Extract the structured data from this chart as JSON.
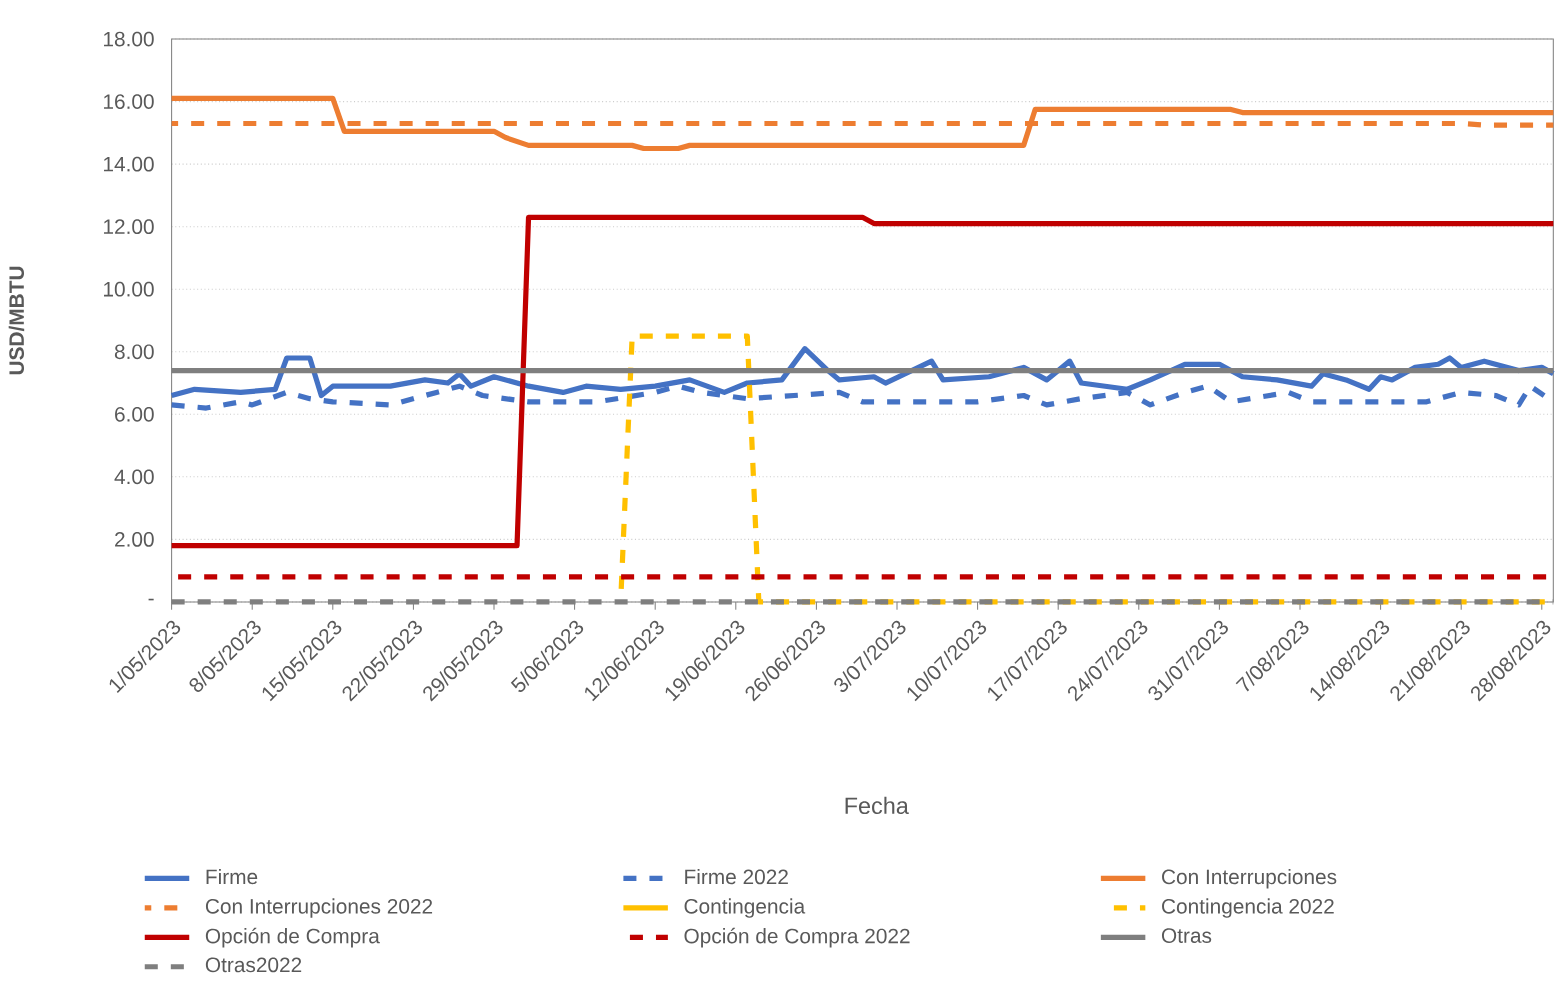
{
  "chart_data": {
    "type": "line",
    "xlabel": "Fecha",
    "ylabel": "USD/MBTU",
    "xlim": [
      "2023-05-01",
      "2023-08-29"
    ],
    "xticks": [
      {
        "value": "2023-05-01",
        "label": "1/05/2023"
      },
      {
        "value": "2023-05-08",
        "label": "8/05/2023"
      },
      {
        "value": "2023-05-15",
        "label": "15/05/2023"
      },
      {
        "value": "2023-05-22",
        "label": "22/05/2023"
      },
      {
        "value": "2023-05-29",
        "label": "29/05/2023"
      },
      {
        "value": "2023-06-05",
        "label": "5/06/2023"
      },
      {
        "value": "2023-06-12",
        "label": "12/06/2023"
      },
      {
        "value": "2023-06-19",
        "label": "19/06/2023"
      },
      {
        "value": "2023-06-26",
        "label": "26/06/2023"
      },
      {
        "value": "2023-07-03",
        "label": "3/07/2023"
      },
      {
        "value": "2023-07-10",
        "label": "10/07/2023"
      },
      {
        "value": "2023-07-17",
        "label": "17/07/2023"
      },
      {
        "value": "2023-07-24",
        "label": "24/07/2023"
      },
      {
        "value": "2023-07-31",
        "label": "31/07/2023"
      },
      {
        "value": "2023-08-07",
        "label": "7/08/2023"
      },
      {
        "value": "2023-08-14",
        "label": "14/08/2023"
      },
      {
        "value": "2023-08-21",
        "label": "21/08/2023"
      },
      {
        "value": "2023-08-28",
        "label": "28/08/2023"
      }
    ],
    "ylim": [
      0,
      18
    ],
    "yticks": [
      {
        "value": 0,
        "label": "-"
      },
      {
        "value": 2,
        "label": "2.00"
      },
      {
        "value": 4,
        "label": "4.00"
      },
      {
        "value": 6,
        "label": "6.00"
      },
      {
        "value": 8,
        "label": "8.00"
      },
      {
        "value": 10,
        "label": "10.00"
      },
      {
        "value": 12,
        "label": "12.00"
      },
      {
        "value": 14,
        "label": "14.00"
      },
      {
        "value": 16,
        "label": "16.00"
      },
      {
        "value": 18,
        "label": "18.00"
      }
    ],
    "grid": "y",
    "legend": "bottom",
    "marker": "none",
    "series": [
      {
        "name": "Firme",
        "color": "#4472c4",
        "line_style": "solid",
        "x": [
          "2023-05-01",
          "2023-05-03",
          "2023-05-07",
          "2023-05-10",
          "2023-05-11",
          "2023-05-13",
          "2023-05-14",
          "2023-05-15",
          "2023-05-20",
          "2023-05-23",
          "2023-05-25",
          "2023-05-26",
          "2023-05-27",
          "2023-05-29",
          "2023-06-01",
          "2023-06-04",
          "2023-06-06",
          "2023-06-09",
          "2023-06-12",
          "2023-06-15",
          "2023-06-18",
          "2023-06-20",
          "2023-06-23",
          "2023-06-25",
          "2023-06-27",
          "2023-06-28",
          "2023-07-01",
          "2023-07-02",
          "2023-07-06",
          "2023-07-07",
          "2023-07-11",
          "2023-07-14",
          "2023-07-16",
          "2023-07-18",
          "2023-07-19",
          "2023-07-23",
          "2023-07-25",
          "2023-07-28",
          "2023-07-31",
          "2023-08-02",
          "2023-08-05",
          "2023-08-08",
          "2023-08-09",
          "2023-08-11",
          "2023-08-13",
          "2023-08-14",
          "2023-08-15",
          "2023-08-17",
          "2023-08-19",
          "2023-08-20",
          "2023-08-21",
          "2023-08-23",
          "2023-08-26",
          "2023-08-28",
          "2023-08-29"
        ],
        "values": [
          6.6,
          6.8,
          6.7,
          6.8,
          7.8,
          7.8,
          6.6,
          6.9,
          6.9,
          7.1,
          7.0,
          7.3,
          6.9,
          7.2,
          6.9,
          6.7,
          6.9,
          6.8,
          6.9,
          7.1,
          6.7,
          7.0,
          7.1,
          8.1,
          7.4,
          7.1,
          7.2,
          7.0,
          7.7,
          7.1,
          7.2,
          7.5,
          7.1,
          7.7,
          7.0,
          6.8,
          7.1,
          7.6,
          7.6,
          7.2,
          7.1,
          6.9,
          7.3,
          7.1,
          6.8,
          7.2,
          7.1,
          7.5,
          7.6,
          7.8,
          7.5,
          7.7,
          7.4,
          7.5,
          7.3
        ]
      },
      {
        "name": "Firme 2022",
        "color": "#4472c4",
        "line_style": "dashed",
        "x": [
          "2023-05-01",
          "2023-05-04",
          "2023-05-07",
          "2023-05-08",
          "2023-05-11",
          "2023-05-13",
          "2023-05-15",
          "2023-05-20",
          "2023-05-24",
          "2023-05-26",
          "2023-05-28",
          "2023-06-01",
          "2023-06-07",
          "2023-06-12",
          "2023-06-14",
          "2023-06-16",
          "2023-06-20",
          "2023-06-24",
          "2023-06-28",
          "2023-06-30",
          "2023-07-06",
          "2023-07-10",
          "2023-07-14",
          "2023-07-16",
          "2023-07-19",
          "2023-07-23",
          "2023-07-25",
          "2023-07-28",
          "2023-07-30",
          "2023-08-01",
          "2023-08-06",
          "2023-08-08",
          "2023-08-18",
          "2023-08-21",
          "2023-08-24",
          "2023-08-26",
          "2023-08-27",
          "2023-08-29"
        ],
        "values": [
          6.3,
          6.2,
          6.4,
          6.3,
          6.7,
          6.5,
          6.4,
          6.3,
          6.7,
          6.9,
          6.6,
          6.4,
          6.4,
          6.7,
          6.9,
          6.7,
          6.5,
          6.6,
          6.7,
          6.4,
          6.4,
          6.4,
          6.6,
          6.3,
          6.5,
          6.7,
          6.3,
          6.7,
          6.9,
          6.4,
          6.7,
          6.4,
          6.4,
          6.7,
          6.6,
          6.3,
          6.9,
          6.4
        ]
      },
      {
        "name": "Con Interrupciones",
        "color": "#ed7d31",
        "line_style": "solid",
        "x": [
          "2023-05-01",
          "2023-05-15",
          "2023-05-16",
          "2023-05-29",
          "2023-05-30",
          "2023-06-01",
          "2023-06-10",
          "2023-06-11",
          "2023-06-14",
          "2023-06-15",
          "2023-07-14",
          "2023-07-15",
          "2023-08-01",
          "2023-08-02",
          "2023-08-29"
        ],
        "values": [
          16.1,
          16.1,
          15.05,
          15.05,
          14.85,
          14.6,
          14.6,
          14.5,
          14.5,
          14.6,
          14.6,
          15.75,
          15.75,
          15.65,
          15.65
        ]
      },
      {
        "name": "Con Interrupciones 2022",
        "color": "#ed7d31",
        "line_style": "dashed",
        "x": [
          "2023-05-01",
          "2023-08-21",
          "2023-08-23",
          "2023-08-29"
        ],
        "values": [
          15.3,
          15.3,
          15.25,
          15.25
        ]
      },
      {
        "name": "Contingencia",
        "color": "#ffc000",
        "line_style": "solid"
      },
      {
        "name": "Contingencia 2022",
        "color": "#ffc000",
        "line_style": "dashed",
        "x": [
          "2023-06-09",
          "2023-06-10",
          "2023-06-20",
          "2023-06-21",
          "2023-08-29"
        ],
        "values": [
          0,
          8.5,
          8.5,
          0,
          0
        ]
      },
      {
        "name": "Opción de Compra",
        "color": "#c00000",
        "line_style": "solid",
        "x": [
          "2023-05-01",
          "2023-05-31",
          "2023-06-01",
          "2023-06-30",
          "2023-07-01",
          "2023-08-29"
        ],
        "values": [
          1.8,
          1.8,
          12.3,
          12.3,
          12.1,
          12.1
        ]
      },
      {
        "name": "Opción de Compra 2022",
        "color": "#c00000",
        "line_style": "dashed",
        "x": [
          "2023-05-01",
          "2023-08-29"
        ],
        "values": [
          0.8,
          0.8
        ]
      },
      {
        "name": "Otras",
        "color": "#7f7f7f",
        "line_style": "solid",
        "x": [
          "2023-05-01",
          "2023-08-29"
        ],
        "values": [
          7.4,
          7.4
        ]
      },
      {
        "name": "Otras2022",
        "color": "#7f7f7f",
        "line_style": "dashed",
        "x": [
          "2023-05-01",
          "2023-08-29"
        ],
        "values": [
          0,
          0
        ]
      }
    ]
  }
}
